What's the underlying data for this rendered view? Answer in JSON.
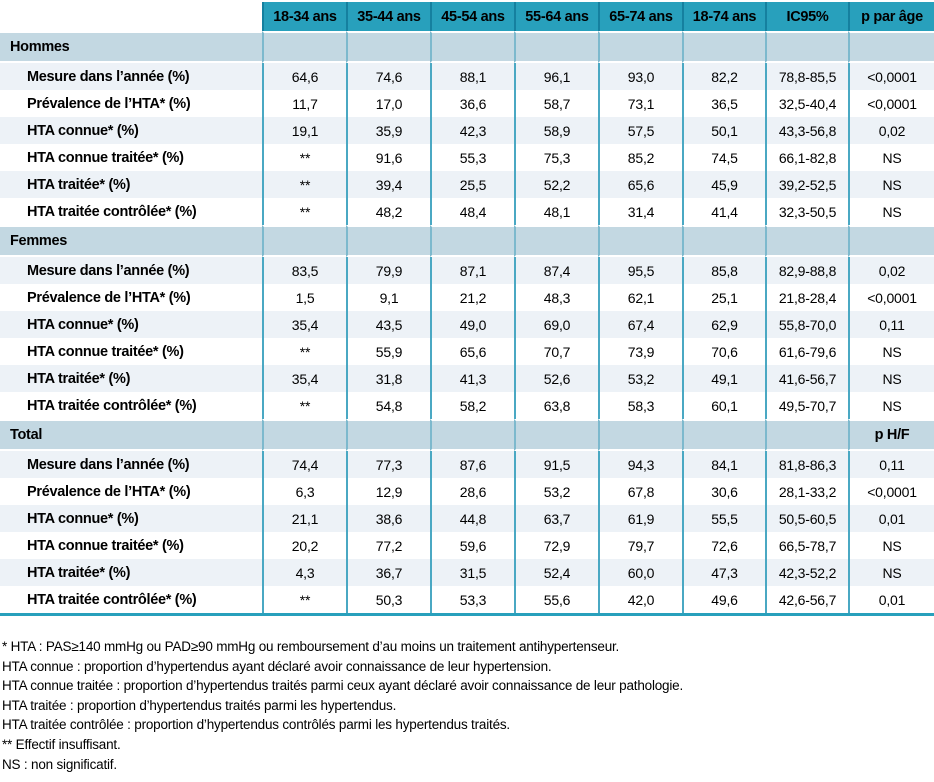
{
  "colors": {
    "accent": "#28a0bc",
    "header_divider": "#15809f",
    "section_bg": "#c3d8e2",
    "stripe": "#edf2f7",
    "grid": "#4aa8c3",
    "grid_light": "#7db9cd"
  },
  "table": {
    "columns": [
      "",
      "18-34 ans",
      "35-44 ans",
      "45-54 ans",
      "55-64 ans",
      "65-74 ans",
      "18-74 ans",
      "IC95%",
      "p par âge"
    ],
    "sections": [
      {
        "title": "Hommes",
        "corner_label": "",
        "rows": [
          {
            "label": "Mesure dans l’année (%)",
            "values": [
              "64,6",
              "74,6",
              "88,1",
              "96,1",
              "93,0",
              "82,2",
              "78,8-85,5",
              "<0,0001"
            ]
          },
          {
            "label": "Prévalence de l’HTA* (%)",
            "values": [
              "11,7",
              "17,0",
              "36,6",
              "58,7",
              "73,1",
              "36,5",
              "32,5-40,4",
              "<0,0001"
            ]
          },
          {
            "label": "HTA connue* (%)",
            "values": [
              "19,1",
              "35,9",
              "42,3",
              "58,9",
              "57,5",
              "50,1",
              "43,3-56,8",
              "0,02"
            ]
          },
          {
            "label": "HTA connue traitée* (%)",
            "values": [
              "**",
              "91,6",
              "55,3",
              "75,3",
              "85,2",
              "74,5",
              "66,1-82,8",
              "NS"
            ]
          },
          {
            "label": "HTA traitée* (%)",
            "values": [
              "**",
              "39,4",
              "25,5",
              "52,2",
              "65,6",
              "45,9",
              "39,2-52,5",
              "NS"
            ]
          },
          {
            "label": "HTA traitée contrôlée* (%)",
            "values": [
              "**",
              "48,2",
              "48,4",
              "48,1",
              "31,4",
              "41,4",
              "32,3-50,5",
              "NS"
            ]
          }
        ]
      },
      {
        "title": "Femmes",
        "corner_label": "",
        "rows": [
          {
            "label": "Mesure dans l’année (%)",
            "values": [
              "83,5",
              "79,9",
              "87,1",
              "87,4",
              "95,5",
              "85,8",
              "82,9-88,8",
              "0,02"
            ]
          },
          {
            "label": "Prévalence de l’HTA* (%)",
            "values": [
              "1,5",
              "9,1",
              "21,2",
              "48,3",
              "62,1",
              "25,1",
              "21,8-28,4",
              "<0,0001"
            ]
          },
          {
            "label": "HTA connue* (%)",
            "values": [
              "35,4",
              "43,5",
              "49,0",
              "69,0",
              "67,4",
              "62,9",
              "55,8-70,0",
              "0,11"
            ]
          },
          {
            "label": "HTA connue traitée* (%)",
            "values": [
              "**",
              "55,9",
              "65,6",
              "70,7",
              "73,9",
              "70,6",
              "61,6-79,6",
              "NS"
            ]
          },
          {
            "label": "HTA traitée* (%)",
            "values": [
              "35,4",
              "31,8",
              "41,3",
              "52,6",
              "53,2",
              "49,1",
              "41,6-56,7",
              "NS"
            ]
          },
          {
            "label": "HTA traitée contrôlée* (%)",
            "values": [
              "**",
              "54,8",
              "58,2",
              "63,8",
              "58,3",
              "60,1",
              "49,5-70,7",
              "NS"
            ]
          }
        ]
      },
      {
        "title": "Total",
        "corner_label": "p H/F",
        "rows": [
          {
            "label": "Mesure dans l’année (%)",
            "values": [
              "74,4",
              "77,3",
              "87,6",
              "91,5",
              "94,3",
              "84,1",
              "81,8-86,3",
              "0,11"
            ]
          },
          {
            "label": "Prévalence de l’HTA* (%)",
            "values": [
              "6,3",
              "12,9",
              "28,6",
              "53,2",
              "67,8",
              "30,6",
              "28,1-33,2",
              "<0,0001"
            ]
          },
          {
            "label": "HTA connue* (%)",
            "values": [
              "21,1",
              "38,6",
              "44,8",
              "63,7",
              "61,9",
              "55,5",
              "50,5-60,5",
              "0,01"
            ]
          },
          {
            "label": "HTA connue traitée* (%)",
            "values": [
              "20,2",
              "77,2",
              "59,6",
              "72,9",
              "79,7",
              "72,6",
              "66,5-78,7",
              "NS"
            ]
          },
          {
            "label": "HTA traitée* (%)",
            "values": [
              "4,3",
              "36,7",
              "31,5",
              "52,4",
              "60,0",
              "47,3",
              "42,3-52,2",
              "NS"
            ]
          },
          {
            "label": "HTA traitée contrôlée* (%)",
            "values": [
              "**",
              "50,3",
              "53,3",
              "55,6",
              "42,0",
              "49,6",
              "42,6-56,7",
              "0,01"
            ]
          }
        ]
      }
    ]
  },
  "footnotes": {
    "lines": [
      "* HTA : PAS≥140 mmHg ou PAD≥90 mmHg ou remboursement d’au moins un traitement antihypertenseur.",
      "HTA connue : proportion d’hypertendus ayant déclaré avoir connaissance de leur hypertension.",
      "HTA connue traitée : proportion d’hypertendus traités parmi ceux ayant déclaré avoir connaissance de leur pathologie.",
      "HTA traitée : proportion d’hypertendus traités parmi les hypertendus.",
      "HTA traitée contrôlée : proportion d’hypertendus contrôlés parmi les hypertendus traités.",
      "** Effectif insuffisant.",
      "NS : non significatif."
    ]
  }
}
